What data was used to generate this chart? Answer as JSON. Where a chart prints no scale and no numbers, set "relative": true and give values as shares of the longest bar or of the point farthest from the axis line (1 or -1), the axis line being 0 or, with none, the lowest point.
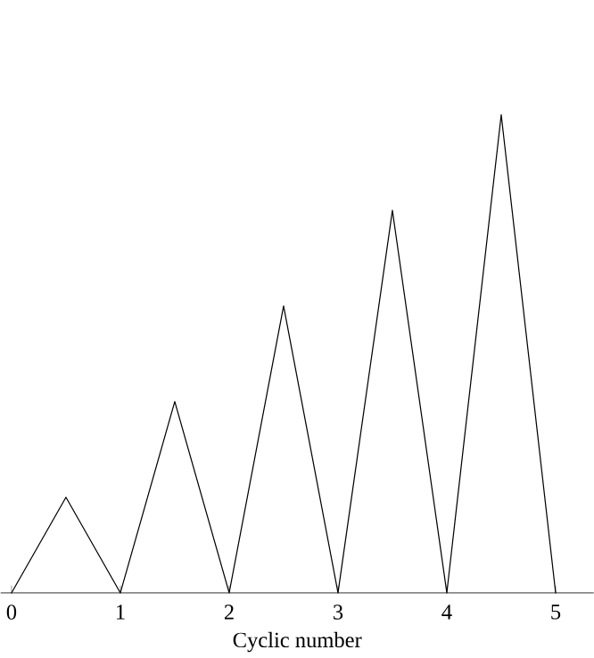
{
  "chart_data": {
    "type": "line",
    "relative": true,
    "xlabel": "Cyclic number",
    "x": [
      0,
      0.5,
      1,
      1.5,
      2,
      2.5,
      3,
      3.5,
      4,
      4.5,
      5
    ],
    "values": [
      0,
      0.2,
      0,
      0.4,
      0,
      0.6,
      0,
      0.8,
      0,
      1,
      0
    ],
    "color": "#000000",
    "xlim": [
      -0.1,
      5.35
    ],
    "xticks": [
      0,
      1,
      2,
      3,
      4,
      5
    ],
    "marker": "none",
    "line_style": "solid"
  }
}
